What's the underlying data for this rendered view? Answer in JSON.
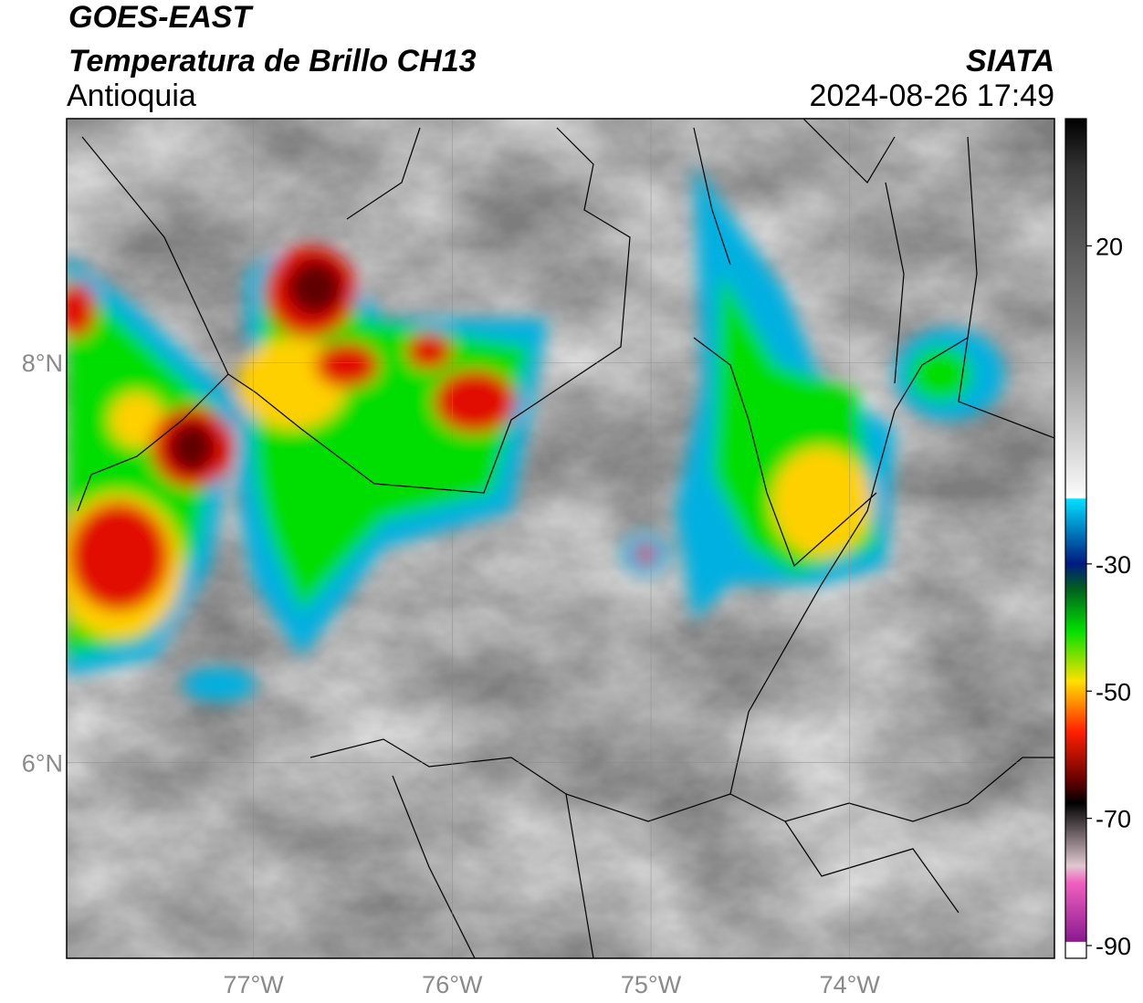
{
  "header": {
    "title": "GOES-EAST",
    "subtitle": "Temperatura de Brillo CH13",
    "region": "Antioquia",
    "source": "SIATA",
    "datetime": "2024-08-26 17:49"
  },
  "map": {
    "lonlim": [
      -77.94,
      -72.97
    ],
    "latlim": [
      5.02,
      9.22
    ],
    "lon_ticks": [
      {
        "value": -77,
        "label": "77°W"
      },
      {
        "value": -76,
        "label": "76°W"
      },
      {
        "value": -75,
        "label": "75°W"
      },
      {
        "value": -74,
        "label": "74°W"
      }
    ],
    "lat_ticks": [
      {
        "value": 8,
        "label": "8°N"
      },
      {
        "value": 6,
        "label": "6°N"
      }
    ]
  },
  "colorbar": {
    "range": [
      40,
      -92
    ],
    "ticks": [
      20,
      -30,
      -50,
      -70,
      -90
    ]
  }
}
